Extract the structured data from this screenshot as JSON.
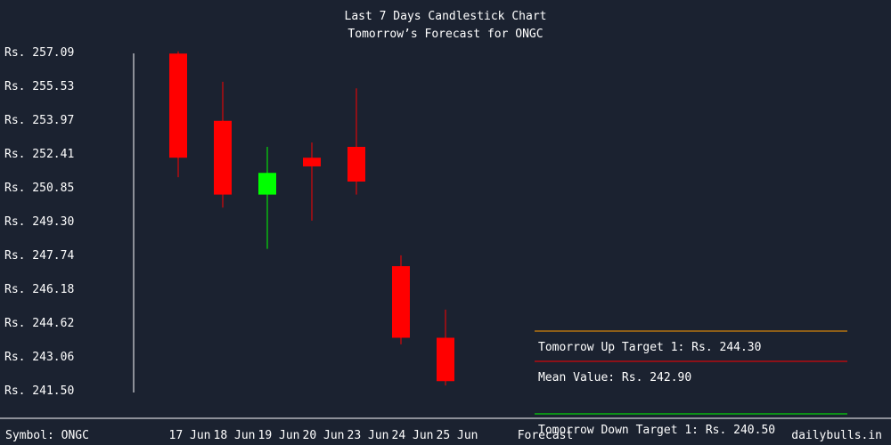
{
  "title": "Last 7 Days Candlestick Chart",
  "subtitle": "Tomorrow’s Forecast for ONGC",
  "footer": {
    "symbol": "Symbol: ONGC",
    "site": "dailybulls.in"
  },
  "colors": {
    "background": "#1b2230",
    "up": "#00ff00",
    "down": "#ff0000",
    "up_target_line": "#ff9900",
    "mean_line": "#ff0000",
    "down_target_line": "#00ff00",
    "axis": "#ffffff"
  },
  "chart_data": {
    "type": "candlestick",
    "y_ticks": [
      "Rs. 257.09",
      "Rs. 255.53",
      "Rs. 253.97",
      "Rs. 252.41",
      "Rs. 250.85",
      "Rs. 249.30",
      "Rs. 247.74",
      "Rs. 246.18",
      "Rs. 244.62",
      "Rs. 243.06",
      "Rs. 241.50"
    ],
    "ylim": [
      241.5,
      257.09
    ],
    "categories": [
      "17 Jun",
      "18 Jun",
      "19 Jun",
      "20 Jun",
      "23 Jun",
      "24 Jun",
      "25 Jun",
      "Forecast"
    ],
    "candles": [
      {
        "date": "17 Jun",
        "open": 257.0,
        "high": 257.1,
        "low": 251.3,
        "close": 252.2
      },
      {
        "date": "18 Jun",
        "open": 253.9,
        "high": 255.7,
        "low": 249.9,
        "close": 250.5
      },
      {
        "date": "19 Jun",
        "open": 250.5,
        "high": 252.7,
        "low": 248.0,
        "close": 251.5
      },
      {
        "date": "20 Jun",
        "open": 252.2,
        "high": 252.9,
        "low": 249.3,
        "close": 251.8
      },
      {
        "date": "23 Jun",
        "open": 252.7,
        "high": 255.4,
        "low": 250.5,
        "close": 251.1
      },
      {
        "date": "24 Jun",
        "open": 247.2,
        "high": 247.7,
        "low": 243.6,
        "close": 243.9
      },
      {
        "date": "25 Jun",
        "open": 243.9,
        "high": 245.2,
        "low": 241.7,
        "close": 241.9
      }
    ],
    "forecast": [
      {
        "label": "Tomorrow Up Target 1: Rs. 244.30",
        "value": 244.3,
        "color": "#ff9900"
      },
      {
        "label": "Mean Value: Rs. 242.90",
        "value": 242.9,
        "color": "#ff0000"
      },
      {
        "label": "Tomorrow Down Target 1: Rs. 240.50",
        "value": 240.5,
        "color": "#00ff00"
      }
    ]
  }
}
